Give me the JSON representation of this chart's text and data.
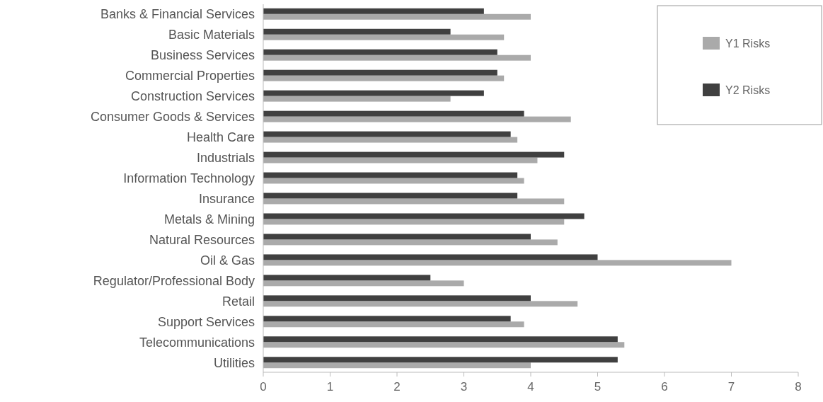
{
  "chart_data": {
    "type": "bar",
    "orientation": "horizontal",
    "categories": [
      "Banks & Financial Services",
      "Basic Materials",
      "Business Services",
      "Commercial Properties",
      "Construction Services",
      "Consumer Goods & Services",
      "Health Care",
      "Industrials",
      "Information Technology",
      "Insurance",
      "Metals & Mining",
      "Natural Resources",
      "Oil & Gas",
      "Regulator/Professional Body",
      "Retail",
      "Support Services",
      "Telecommunications",
      "Utilities"
    ],
    "series": [
      {
        "name": "Y1 Risks",
        "color": "#aaaaaa",
        "values": [
          4.0,
          3.6,
          4.0,
          3.6,
          2.8,
          4.6,
          3.8,
          4.1,
          3.9,
          4.5,
          4.5,
          4.4,
          7.0,
          3.0,
          4.7,
          3.9,
          5.4,
          4.0
        ]
      },
      {
        "name": "Y2 Risks",
        "color": "#404040",
        "values": [
          3.3,
          2.8,
          3.5,
          3.5,
          3.3,
          3.9,
          3.7,
          4.5,
          3.8,
          3.8,
          4.8,
          4.0,
          5.0,
          2.5,
          4.0,
          3.7,
          5.3,
          5.3
        ]
      }
    ],
    "xlim": [
      0,
      8
    ],
    "xticks": [
      0,
      1,
      2,
      3,
      4,
      5,
      6,
      7,
      8
    ],
    "grid": false,
    "legend": "top right"
  }
}
